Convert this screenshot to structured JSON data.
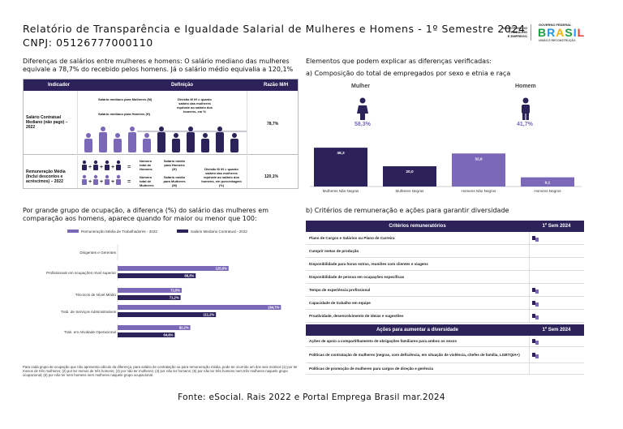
{
  "header": {
    "title": "Relatório de Transparência e Igualdade Salarial de Mulheres e Homens - 1º Semestre 2024",
    "cnpj": "CNPJ: 05126777000110",
    "ministry": [
      "MINISTÉRIO DO",
      "TRABALHO",
      "E EMPREGO"
    ],
    "gov": "GOVERNO FEDERAL",
    "brasil": "BRASIL",
    "gov_sub": "UNIÃO E RECONSTRUÇÃO"
  },
  "left": {
    "intro": "Diferenças de salários entre mulheres e homens: O salário mediano das mulheres equivale a 78,7% do recebido pelos homens. Já o salário médio equivalia a 120,1%",
    "table": {
      "headers": [
        "Indicador",
        "Definição",
        "Razão M/H"
      ],
      "rows": [
        {
          "indicator": "Salário Contratual Mediano (não pago) – 2022",
          "def_m": "Salário mediano para Mulheres (M)",
          "def_h": "Salário mediano para Homens (H)",
          "def_div": "Divisão M /H = quanto salário das mulheres equivale ao salário dos homens, em %",
          "ratio": "78,7%"
        },
        {
          "indicator": "Remuneração Média (Inclui descontos e acréscimos) – 2022",
          "num_h": "Número total de Homens",
          "avg_h": "Salário médio para Homens (H)",
          "num_m": "Número total de Mulheres",
          "avg_m": "Salário médio para Mulheres (M)",
          "def_div": "Divisão M /H = quanto salário das mulheres equivale ao salário dos homens, em porcentagem (%)",
          "ratio": "120,1%"
        }
      ]
    },
    "occ_title": "Por grande grupo de ocupação, a diferença (%) do salário das mulheres em comparação aos homens, aparece quando for maior ou menor que 100:",
    "footnote": "Para cada grupo de ocupação que não apresenta cálculo da diferença, para salário de contratação ou para remuneração média, pode ter ocorrido um dos seis motivos (1) por ter menos de três mulheres; (2) por ter menos de três homens; (3) por não ter mulheres; (4) por não ter homens; (5) por não ter três homens nem três mulheres naquele grupo ocupacional; (6) por não ter nem homens nem mulheres naquele grupo ocupacional."
  },
  "occ_chart": {
    "type": "bar",
    "legend": [
      "Remuneração Média de Trabalhadores - 2022",
      "Salário Mediano Contratual - 2022"
    ],
    "colors": [
      "#7b68b8",
      "#2c2159"
    ],
    "categories": [
      "Dirigentes e Gerentes",
      "Profissionais em ocupações nível superior",
      "Técnicos de Nível Médio",
      "Trab. de Serviços Administrativos",
      "Trab. em Atividade Operacional"
    ],
    "series": [
      {
        "name": "Remuneração Média de Trabalhadores - 2022",
        "values": [
          null,
          125.5,
          72.5,
          184.7,
          82.2
        ],
        "labels": [
          "",
          "125,5%",
          "72,5%",
          "184,7%",
          "82,2%"
        ]
      },
      {
        "name": "Salário Mediano Contratual - 2022",
        "values": [
          null,
          88.3,
          71.2,
          111.2,
          64.6
        ],
        "labels": [
          "",
          "88,3%",
          "71,2%",
          "111,2%",
          "64,6%"
        ]
      }
    ],
    "max": 200
  },
  "right": {
    "factors_title": "Elementos que podem explicar as diferenças verificadas:",
    "sub_a": "a) Composição do total de empregados por sexo e etnia e raça",
    "women_label": "Mulher",
    "men_label": "Homem",
    "women_pct": "58,3%",
    "men_pct": "41,7%",
    "sub_b": "b) Critérios de remuneração e ações para garantir diversidade"
  },
  "chart_data": {
    "type": "bar",
    "categories": [
      "Mulheres Não Negras",
      "Mulheres Negras",
      "Homens Não Negros",
      "Homens Negros"
    ],
    "values": [
      38.3,
      20.0,
      32.6,
      9.1
    ],
    "labels": [
      "38,3",
      "20,0",
      "32,6",
      "9,1"
    ],
    "colors": [
      "#2c2159",
      "#2c2159",
      "#7b68b8",
      "#7b68b8"
    ],
    "ylim": [
      0,
      40
    ]
  },
  "criteria": {
    "header": "Critérios remuneratórios",
    "col": "1º Sem 2024",
    "rows": [
      {
        "label": "Plano de Cargos e Salários ou Plano de Carreira",
        "check": true
      },
      {
        "label": "Cumprir metas de produção",
        "check": false
      },
      {
        "label": "Disponibilidade para horas extras, reuniões com clientes e viagens",
        "check": false
      },
      {
        "label": "Disponibilidade de pessoa em ocupações específicas",
        "check": false
      },
      {
        "label": "Tempo de experiência profissional",
        "check": true
      },
      {
        "label": "Capacidade de trabalho em equipe",
        "check": true
      },
      {
        "label": "Proatividade, desenvolvimento de ideias e sugestões",
        "check": true
      }
    ]
  },
  "diversity": {
    "header": "Ações para aumentar a diversidade",
    "col": "1º Sem 2024",
    "rows": [
      {
        "label": "Ações de apoio a compartilhamento de obrigações familiares para ambos os sexos",
        "check": true
      },
      {
        "label": "Políticas de contratação de mulheres (negras, com deficiência, em situação de violência, chefes de família, LGBTQIA+)",
        "check": true
      },
      {
        "label": "Políticas de promoção de mulheres para cargos de direção e gerência",
        "check": false
      }
    ]
  },
  "footer": "Fonte: eSocial. Rais 2022 e Portal Emprega Brasil mar.2024"
}
